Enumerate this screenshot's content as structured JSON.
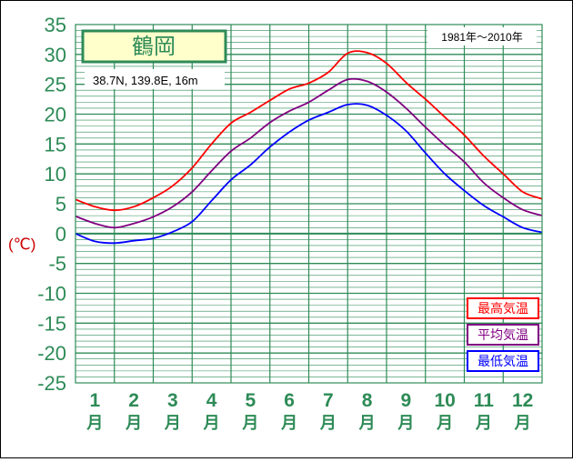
{
  "chart_data": {
    "type": "line",
    "title": "鶴岡",
    "location": "38.7N,  139.8E,  16m",
    "period": "1981年〜2010年",
    "ylabel": "(℃)",
    "ylim": [
      -25,
      35
    ],
    "yticks": [
      35,
      30,
      25,
      20,
      15,
      10,
      5,
      0,
      -5,
      -10,
      -15,
      -20,
      -25
    ],
    "xlim": [
      0,
      12
    ],
    "months": [
      {
        "num": "1",
        "unit": "月"
      },
      {
        "num": "2",
        "unit": "月"
      },
      {
        "num": "3",
        "unit": "月"
      },
      {
        "num": "4",
        "unit": "月"
      },
      {
        "num": "5",
        "unit": "月"
      },
      {
        "num": "6",
        "unit": "月"
      },
      {
        "num": "7",
        "unit": "月"
      },
      {
        "num": "8",
        "unit": "月"
      },
      {
        "num": "9",
        "unit": "月"
      },
      {
        "num": "10",
        "unit": "月"
      },
      {
        "num": "11",
        "unit": "月"
      },
      {
        "num": "12",
        "unit": "月"
      }
    ],
    "grid": true,
    "legend_position": "bottom-right",
    "x": [
      0,
      0.5,
      1,
      1.5,
      2,
      2.5,
      3,
      3.5,
      4,
      4.5,
      5,
      5.5,
      6,
      6.5,
      7,
      7.5,
      8,
      8.5,
      9,
      9.5,
      10,
      10.5,
      11,
      11.5,
      12
    ],
    "series": [
      {
        "name": "最高気温",
        "color": "#ff0000",
        "values": [
          5.7,
          4.5,
          3.9,
          4.5,
          6.0,
          8.0,
          11.0,
          15.0,
          18.5,
          20.3,
          22.3,
          24.2,
          25.2,
          27.0,
          30.2,
          30.3,
          28.5,
          25.3,
          22.5,
          19.5,
          16.5,
          13.0,
          10.0,
          7.0,
          5.8
        ]
      },
      {
        "name": "平均気温",
        "color": "#800080",
        "values": [
          2.9,
          1.7,
          1.0,
          1.7,
          2.8,
          4.5,
          7.0,
          10.5,
          13.8,
          16.0,
          18.6,
          20.5,
          22.0,
          24.0,
          25.8,
          25.5,
          23.7,
          21.0,
          17.8,
          14.8,
          12.0,
          8.5,
          6.0,
          4.0,
          3.0
        ]
      },
      {
        "name": "最低気温",
        "color": "#0000ff",
        "values": [
          0.0,
          -1.3,
          -1.6,
          -1.2,
          -0.8,
          0.3,
          2.0,
          5.5,
          9.0,
          11.5,
          14.5,
          17.0,
          19.0,
          20.3,
          21.6,
          21.5,
          19.8,
          17.2,
          13.5,
          10.0,
          7.2,
          4.7,
          2.8,
          1.0,
          0.2
        ]
      }
    ]
  }
}
